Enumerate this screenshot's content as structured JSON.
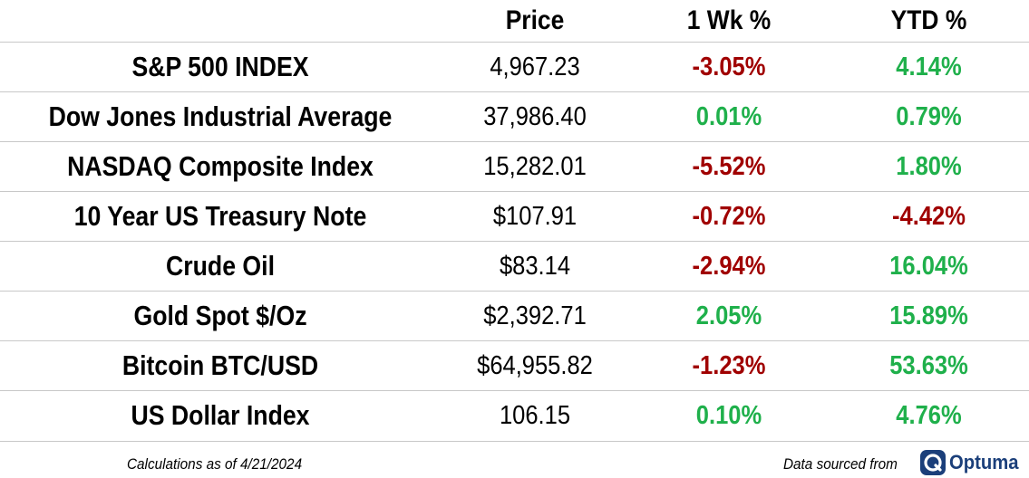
{
  "header": {
    "name": "",
    "price": "Price",
    "week": "1 Wk %",
    "ytd": "YTD %"
  },
  "rows": [
    {
      "name": "S&P 500 INDEX",
      "price": "4,967.23",
      "week": "-3.05%",
      "ytd": "4.14%"
    },
    {
      "name": "Dow Jones Industrial Average",
      "price": "37,986.40",
      "week": "0.01%",
      "ytd": "0.79%"
    },
    {
      "name": "NASDAQ Composite Index",
      "price": "15,282.01",
      "week": "-5.52%",
      "ytd": "1.80%"
    },
    {
      "name": "10 Year US Treasury Note",
      "price": "$107.91",
      "week": "-0.72%",
      "ytd": "-4.42%"
    },
    {
      "name": "Crude Oil",
      "price": "$83.14",
      "week": "-2.94%",
      "ytd": "16.04%"
    },
    {
      "name": "Gold Spot $/Oz",
      "price": "$2,392.71",
      "week": "2.05%",
      "ytd": "15.89%"
    },
    {
      "name": "Bitcoin BTC/USD",
      "price": "$64,955.82",
      "week": "-1.23%",
      "ytd": "53.63%"
    },
    {
      "name": "US Dollar Index",
      "price": "106.15",
      "week": "0.10%",
      "ytd": "4.76%"
    }
  ],
  "footer": {
    "calc_note": "Calculations as of 4/21/2024",
    "source_note": "Data sourced from",
    "logo_text": "Optuma",
    "logo_icon": "optuma-logo-icon"
  },
  "colors": {
    "negative": "#a00000",
    "positive": "#1fb04b",
    "logo": "#1b3f7a"
  }
}
